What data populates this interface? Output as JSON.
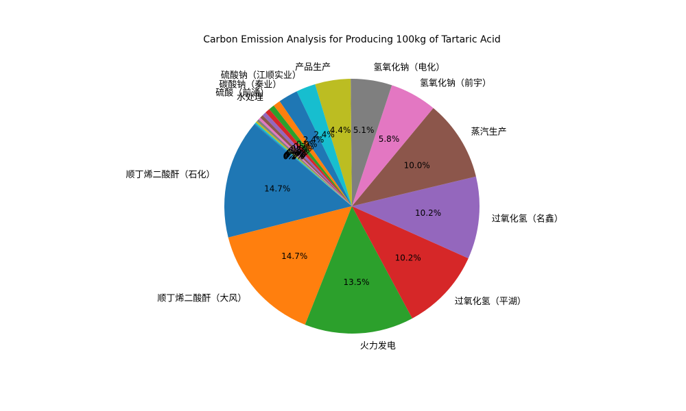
{
  "chart_data": {
    "type": "pie",
    "title": "Carbon Emission Analysis for Producing 100kg of Tartaric Acid",
    "startangle": 140,
    "categories": [
      "顺丁烯二酸酐（石化）",
      "顺丁烯二酸酐（大风）",
      "火力发电",
      "过氧化氢（平湖）",
      "过氧化氢（名鑫）",
      "蒸汽生产",
      "氢氧化钠（前宇）",
      "氢氧化钠（电化）",
      "产品生产",
      "硫酸钠（江顺实业）",
      "碳酸钠（秦业）",
      "硫酸（前通）",
      "水处理",
      null,
      null,
      null,
      null,
      null,
      null,
      null,
      null
    ],
    "values": [
      14.7,
      14.7,
      13.5,
      10.2,
      10.2,
      10.0,
      5.8,
      5.1,
      4.4,
      2.4,
      2.4,
      0.9,
      0.7,
      0.6,
      0.5,
      0.4,
      0.3,
      0.3,
      0.2,
      0.2,
      0.1
    ],
    "value_labels": [
      "14.7%",
      "14.7%",
      "13.5%",
      "10.2%",
      "10.2%",
      "10.0%",
      "5.8%",
      "5.1%",
      "4.4%",
      "2.4%",
      "2.4%",
      "0.9%",
      "0.7%",
      "0.6%",
      "0.5%",
      "0.4%",
      "0.3%",
      "0.3%",
      "0.2%",
      "0.2%",
      "0.1%"
    ],
    "colors": [
      "#1f77b4",
      "#ff7f0e",
      "#2ca02c",
      "#d62728",
      "#9467bd",
      "#8c564b",
      "#e377c2",
      "#7f7f7f",
      "#bcbd22",
      "#17becf",
      "#1f77b4",
      "#ff7f0e",
      "#2ca02c",
      "#d62728",
      "#9467bd",
      "#8c564b",
      "#e377c2",
      "#7f7f7f",
      "#bcbd22",
      "#17becf",
      "#1f77b4"
    ]
  }
}
